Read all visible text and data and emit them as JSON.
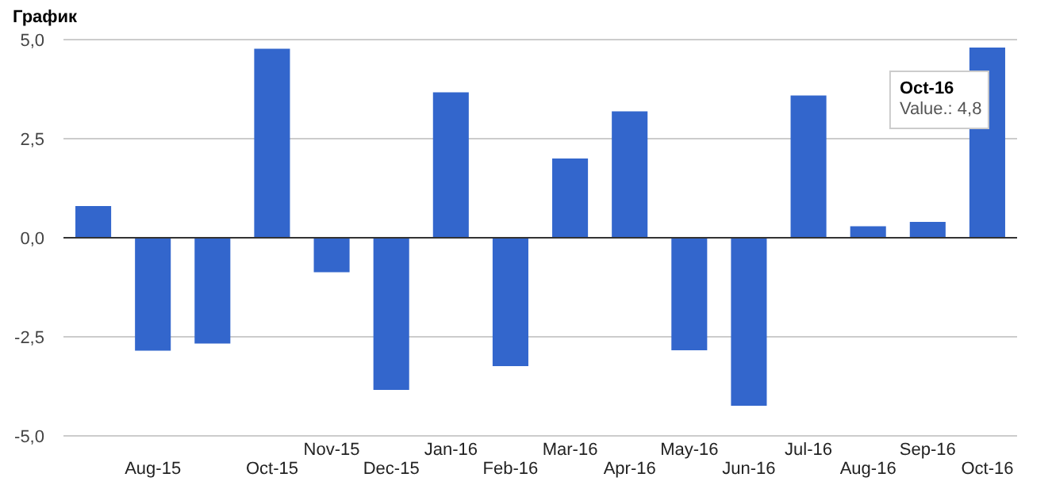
{
  "chart_data": {
    "type": "bar",
    "title": "График",
    "categories": [
      null,
      "Aug-15",
      null,
      "Oct-15",
      "Nov-15",
      "Dec-15",
      "Jan-16",
      "Feb-16",
      "Mar-16",
      "Apr-16",
      "May-16",
      "Jun-16",
      "Jul-16",
      "Aug-16",
      "Sep-16",
      "Oct-16"
    ],
    "values": [
      0.8,
      -2.85,
      -2.67,
      4.77,
      -0.87,
      -3.84,
      3.67,
      -3.24,
      2.0,
      3.19,
      -2.84,
      -4.24,
      3.59,
      0.29,
      0.4,
      4.8
    ],
    "color": "#3366cc",
    "ylim": [
      -5,
      5
    ],
    "yticks": [
      {
        "value": -5,
        "label": "-5,0"
      },
      {
        "value": -2.5,
        "label": "-2,5"
      },
      {
        "value": 0,
        "label": "0,0"
      },
      {
        "value": 2.5,
        "label": "2,5"
      },
      {
        "value": 5,
        "label": "5,0"
      }
    ],
    "grid": "y",
    "annotations": [
      {
        "text": "Oct-16\nValue.: 4,8",
        "x": "Oct-16",
        "y": 4.8
      }
    ]
  }
}
